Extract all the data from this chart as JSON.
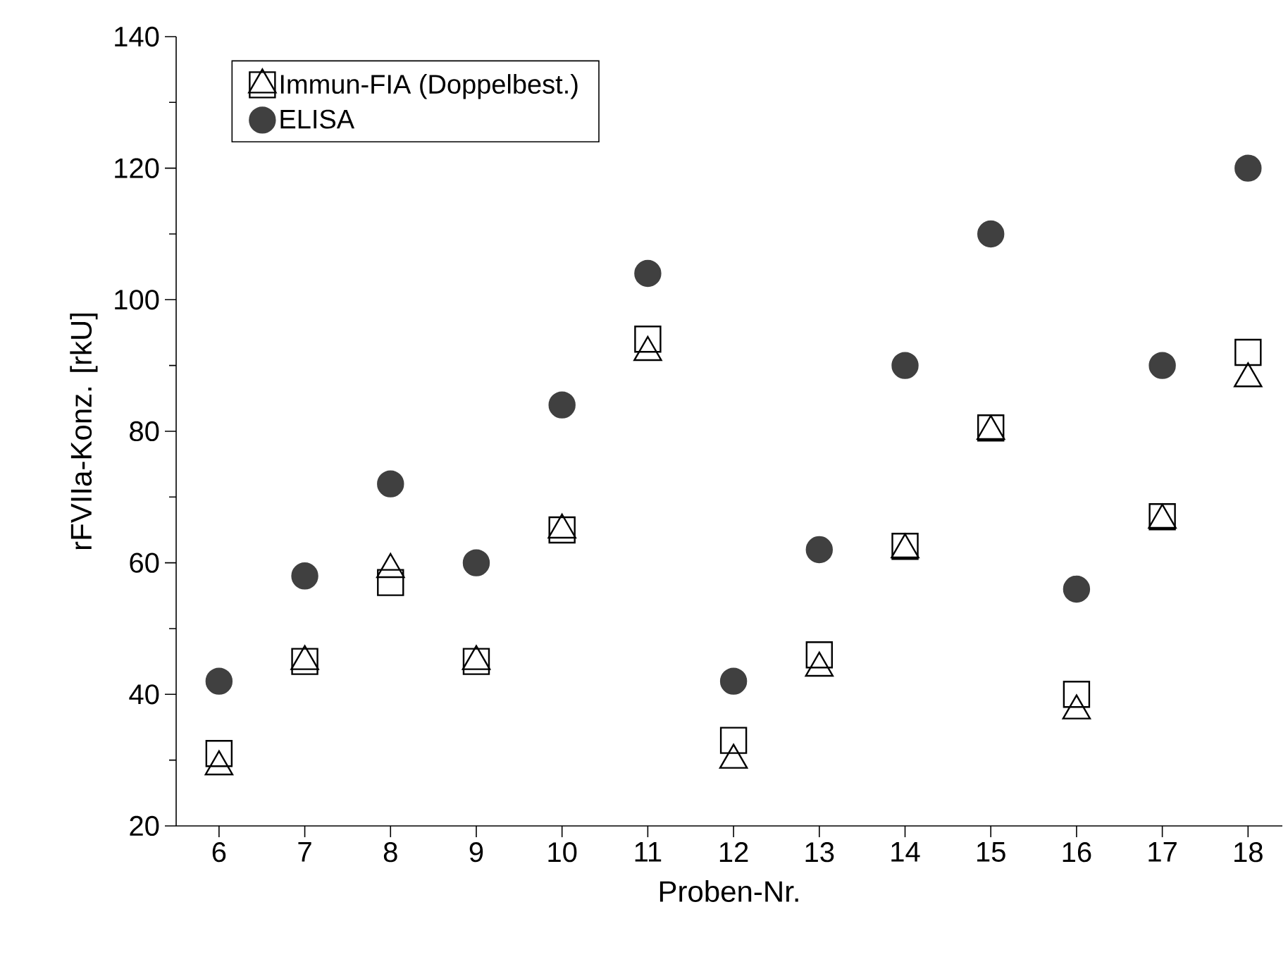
{
  "chart_data": {
    "type": "scatter",
    "xlabel": "Proben-Nr.",
    "ylabel": "rFVIIa-Konz. [rkU]",
    "x": [
      6,
      7,
      8,
      9,
      10,
      11,
      12,
      13,
      14,
      15,
      16,
      17,
      18
    ],
    "xlim": [
      5.5,
      18.4
    ],
    "xticks": [
      6,
      7,
      8,
      9,
      10,
      11,
      12,
      13,
      14,
      15,
      16,
      17,
      18
    ],
    "ylim": [
      20,
      140
    ],
    "yticks": [
      20,
      40,
      60,
      80,
      100,
      120,
      140
    ],
    "grid": false,
    "legend": "top left",
    "series": [
      {
        "name": "Immun-FIA (Doppelbest.)",
        "color": "#000000",
        "marker": "square",
        "values": [
          31,
          45,
          57,
          45,
          65,
          94,
          33,
          46,
          62.5,
          80.5,
          40,
          67,
          92
        ]
      },
      {
        "color": "#000000",
        "marker": "triangle",
        "values": [
          29,
          45,
          59,
          45,
          65,
          92,
          30,
          44,
          62,
          80,
          37.5,
          66.5,
          88
        ]
      },
      {
        "name": "ELISA",
        "color": "#404040",
        "marker": "circle",
        "values": [
          42,
          58,
          72,
          60,
          84,
          104,
          42,
          62,
          90,
          110,
          56,
          90,
          120
        ]
      }
    ]
  }
}
